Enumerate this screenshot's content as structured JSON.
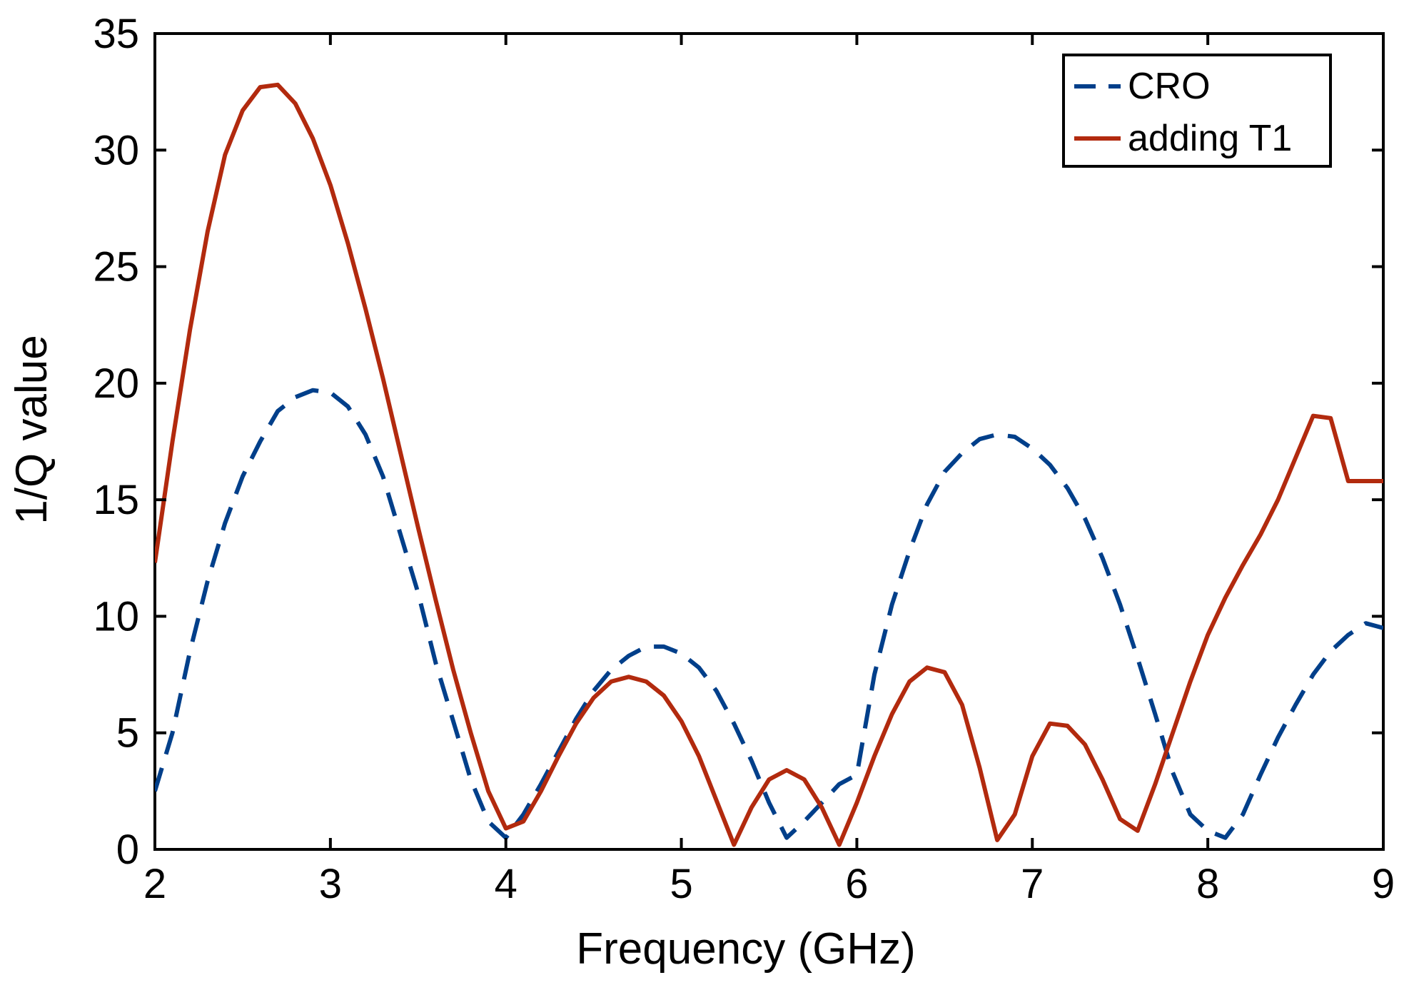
{
  "chart_data": {
    "type": "line",
    "title": "",
    "xlabel": "Frequency (GHz)",
    "ylabel": "1/Q value",
    "xlim": [
      2,
      9
    ],
    "ylim": [
      0,
      35
    ],
    "xticks": [
      2,
      3,
      4,
      5,
      6,
      7,
      8,
      9
    ],
    "yticks": [
      0,
      5,
      10,
      15,
      20,
      25,
      30,
      35
    ],
    "grid": false,
    "legend_position": "top-right",
    "series": [
      {
        "name": "CRO",
        "color": "#003f8a",
        "dash": "dashed",
        "x": [
          2.0,
          2.1,
          2.2,
          2.3,
          2.4,
          2.5,
          2.6,
          2.7,
          2.8,
          2.9,
          3.0,
          3.1,
          3.2,
          3.3,
          3.4,
          3.5,
          3.6,
          3.7,
          3.8,
          3.9,
          4.0,
          4.1,
          4.2,
          4.3,
          4.4,
          4.5,
          4.6,
          4.7,
          4.8,
          4.9,
          5.0,
          5.1,
          5.2,
          5.3,
          5.4,
          5.5,
          5.6,
          5.7,
          5.8,
          5.9,
          6.0,
          6.1,
          6.2,
          6.3,
          6.4,
          6.5,
          6.6,
          6.7,
          6.8,
          6.9,
          7.0,
          7.1,
          7.2,
          7.3,
          7.4,
          7.5,
          7.6,
          7.7,
          7.8,
          7.9,
          8.0,
          8.1,
          8.2,
          8.3,
          8.4,
          8.5,
          8.6,
          8.7,
          8.8,
          8.9,
          9.0
        ],
        "y": [
          2.5,
          5.0,
          8.5,
          11.5,
          14.0,
          16.0,
          17.5,
          18.8,
          19.4,
          19.7,
          19.6,
          19.0,
          17.8,
          16.0,
          13.5,
          11.0,
          8.0,
          5.5,
          3.0,
          1.2,
          0.5,
          1.5,
          2.8,
          4.2,
          5.6,
          6.8,
          7.7,
          8.3,
          8.7,
          8.7,
          8.4,
          7.8,
          6.8,
          5.4,
          3.8,
          2.0,
          0.5,
          1.2,
          2.0,
          2.8,
          3.2,
          7.5,
          10.5,
          12.8,
          14.8,
          16.2,
          17.0,
          17.6,
          17.8,
          17.7,
          17.2,
          16.5,
          15.5,
          14.2,
          12.5,
          10.5,
          8.2,
          5.8,
          3.3,
          1.5,
          0.8,
          0.5,
          1.5,
          3.2,
          4.8,
          6.2,
          7.5,
          8.5,
          9.2,
          9.7,
          9.5
        ]
      },
      {
        "name": "adding T1",
        "color": "#b22a0e",
        "dash": "solid",
        "x": [
          2.0,
          2.1,
          2.2,
          2.3,
          2.4,
          2.5,
          2.6,
          2.7,
          2.8,
          2.9,
          3.0,
          3.1,
          3.2,
          3.3,
          3.4,
          3.5,
          3.6,
          3.7,
          3.8,
          3.9,
          4.0,
          4.1,
          4.2,
          4.3,
          4.4,
          4.5,
          4.6,
          4.7,
          4.8,
          4.9,
          5.0,
          5.1,
          5.2,
          5.3,
          5.4,
          5.5,
          5.6,
          5.7,
          5.8,
          5.9,
          6.0,
          6.1,
          6.2,
          6.3,
          6.4,
          6.5,
          6.6,
          6.7,
          6.8,
          6.9,
          7.0,
          7.1,
          7.2,
          7.3,
          7.4,
          7.5,
          7.6,
          7.7,
          7.8,
          7.9,
          8.0,
          8.1,
          8.2,
          8.3,
          8.4,
          8.5,
          8.6,
          8.7,
          8.8,
          8.9,
          9.0
        ],
        "y": [
          12.3,
          17.5,
          22.3,
          26.5,
          29.8,
          31.7,
          32.7,
          32.8,
          32.0,
          30.5,
          28.5,
          26.0,
          23.2,
          20.2,
          17.0,
          13.8,
          10.7,
          7.7,
          5.0,
          2.5,
          0.9,
          1.2,
          2.5,
          4.0,
          5.4,
          6.5,
          7.2,
          7.4,
          7.2,
          6.6,
          5.5,
          4.0,
          2.1,
          0.2,
          1.8,
          3.0,
          3.4,
          3.0,
          1.8,
          0.2,
          2.0,
          4.0,
          5.8,
          7.2,
          7.8,
          7.6,
          6.2,
          3.5,
          0.4,
          1.5,
          4.0,
          5.4,
          5.3,
          4.5,
          3.0,
          1.3,
          0.8,
          2.8,
          5.0,
          7.2,
          9.2,
          10.8,
          12.2,
          13.5,
          15.0,
          16.8,
          18.6,
          18.5,
          15.8,
          15.8,
          15.8
        ]
      }
    ]
  }
}
